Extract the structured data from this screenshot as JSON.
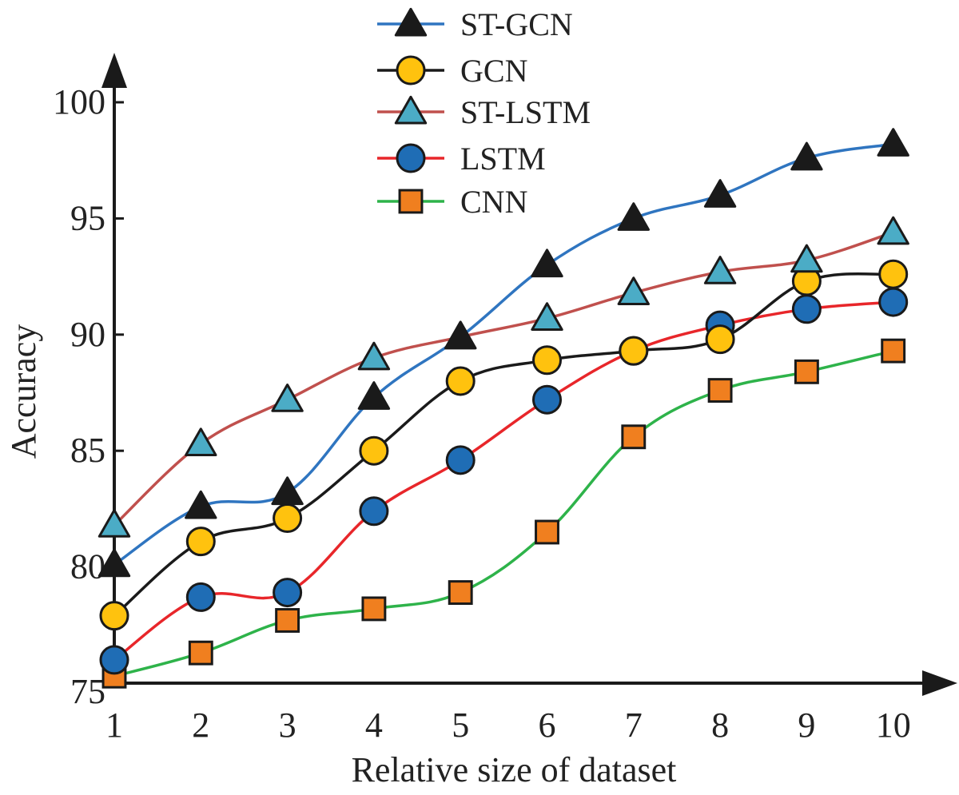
{
  "chart_data": {
    "type": "line",
    "title": "",
    "xlabel": "Relative size of dataset",
    "ylabel": "Accuracy",
    "x": [
      1,
      2,
      3,
      4,
      5,
      6,
      7,
      8,
      9,
      10
    ],
    "ylim": [
      75,
      100
    ],
    "yticks": [
      75,
      80,
      85,
      90,
      95,
      100
    ],
    "grid": false,
    "legend_position": "top-center",
    "series": [
      {
        "name": "ST-GCN",
        "color": "#2f75c0",
        "marker": "triangle",
        "marker_color": "#1a1a1a",
        "values": [
          80.1,
          82.6,
          83.2,
          87.3,
          89.9,
          93.0,
          95.0,
          96.0,
          97.6,
          98.2
        ]
      },
      {
        "name": "GCN",
        "color": "#1a1a1a",
        "marker": "circle",
        "marker_color": "#ffc20e",
        "values": [
          77.9,
          81.1,
          82.1,
          85.0,
          88.0,
          88.9,
          89.3,
          89.8,
          92.3,
          92.6
        ]
      },
      {
        "name": "ST-LSTM",
        "color": "#c0504d",
        "marker": "triangle",
        "marker_color": "#4bacc6",
        "values": [
          81.8,
          85.3,
          87.2,
          89.0,
          89.9,
          90.7,
          91.8,
          92.7,
          93.2,
          94.4
        ]
      },
      {
        "name": "LSTM",
        "color": "#e8262a",
        "marker": "circle",
        "marker_color": "#1f6db5",
        "values": [
          76.0,
          78.7,
          78.9,
          82.4,
          84.6,
          87.2,
          89.3,
          90.4,
          91.1,
          91.4
        ]
      },
      {
        "name": "CNN",
        "color": "#2eb34a",
        "marker": "square",
        "marker_color": "#f07f1f",
        "values": [
          75.3,
          76.3,
          77.7,
          78.2,
          78.9,
          81.5,
          85.6,
          87.6,
          88.4,
          89.3
        ]
      }
    ]
  }
}
